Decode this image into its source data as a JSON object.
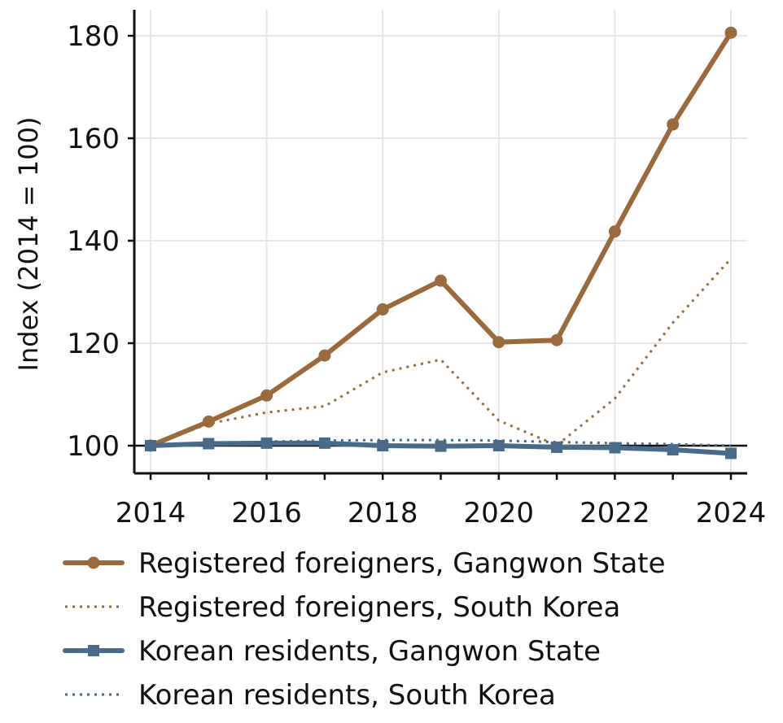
{
  "colors": {
    "foreigners": "#9a6a3c",
    "residents": "#4a6a8a",
    "grid": "#e6e6e6",
    "axis": "#111111",
    "baseline": "#111111"
  },
  "chart_data": {
    "type": "line",
    "xlabel": "",
    "ylabel": "Index (2014 = 100)",
    "x": [
      2014,
      2015,
      2016,
      2017,
      2018,
      2019,
      2020,
      2021,
      2022,
      2023,
      2024
    ],
    "xticks": [
      "2014",
      "2016",
      "2018",
      "2020",
      "2022",
      "2024"
    ],
    "yticks": [
      "100",
      "120",
      "140",
      "160",
      "180"
    ],
    "xlim": [
      2013.7,
      2024.3
    ],
    "ylim": [
      94.5,
      185
    ],
    "grid": true,
    "baseline": 100,
    "legend_position": "bottom",
    "series": [
      {
        "name": "Registered foreigners, Gangwon State",
        "color_key": "foreigners",
        "line_style": "solid",
        "marker": "circle",
        "values": [
          100,
          104.7,
          109.8,
          117.6,
          126.6,
          132.2,
          120.2,
          120.6,
          141.8,
          162.7,
          180.6
        ]
      },
      {
        "name": "Registered foreigners, South Korea",
        "color_key": "foreigners",
        "line_style": "dotted",
        "marker": "none",
        "values": [
          100,
          104.3,
          106.5,
          107.7,
          114.3,
          116.8,
          104.9,
          100.1,
          109.2,
          124.0,
          136.5
        ]
      },
      {
        "name": "Korean residents, Gangwon State",
        "color_key": "residents",
        "line_style": "solid",
        "marker": "square",
        "values": [
          100,
          100.4,
          100.5,
          100.5,
          100.0,
          99.9,
          100.0,
          99.7,
          99.6,
          99.2,
          98.5
        ]
      },
      {
        "name": "Korean residents, South Korea",
        "color_key": "residents",
        "line_style": "dotted",
        "marker": "none",
        "values": [
          100,
          100.3,
          100.8,
          101.0,
          101.1,
          101.1,
          101.0,
          100.7,
          100.5,
          100.3,
          100.0
        ]
      }
    ]
  }
}
